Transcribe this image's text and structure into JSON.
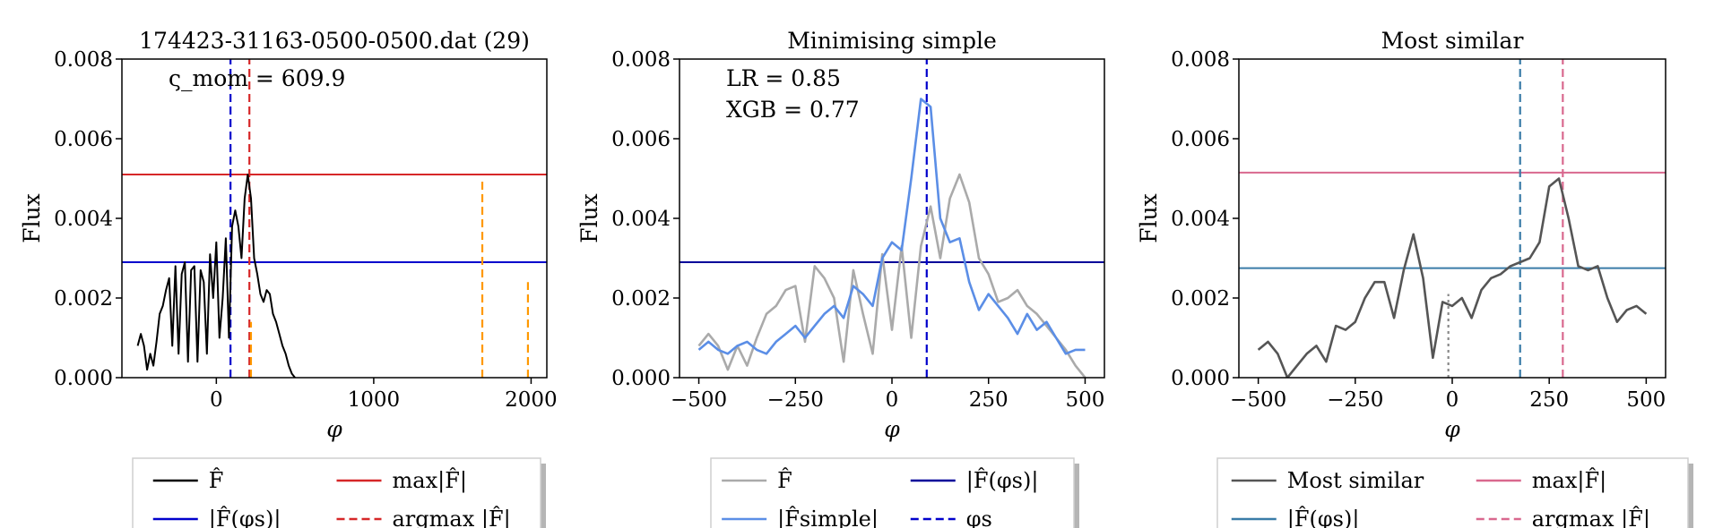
{
  "chart_data": [
    {
      "type": "line",
      "title": "174423-31163-0500-0500.dat (29)",
      "xlabel": "φ",
      "ylabel": "Flux",
      "xlim": [
        -600,
        2100
      ],
      "ylim": [
        0,
        0.008
      ],
      "xticks": [
        0,
        1000,
        2000
      ],
      "xtick_labels": [
        "0",
        "1000",
        "2000"
      ],
      "yticks": [
        0,
        0.002,
        0.004,
        0.006,
        0.008
      ],
      "ytick_labels": [
        "0.000",
        "0.002",
        "0.004",
        "0.006",
        "0.008"
      ],
      "annotation": "ς_mom = 609.9",
      "series": [
        {
          "name": "F̂",
          "color": "#000000",
          "style": "solid",
          "x": [
            -500,
            -480,
            -460,
            -440,
            -420,
            -400,
            -380,
            -360,
            -340,
            -320,
            -300,
            -280,
            -260,
            -240,
            -220,
            -200,
            -180,
            -160,
            -140,
            -120,
            -100,
            -80,
            -60,
            -40,
            -20,
            0,
            20,
            40,
            60,
            80,
            100,
            120,
            140,
            160,
            180,
            200,
            220,
            240,
            260,
            280,
            300,
            320,
            340,
            360,
            380,
            400,
            420,
            440,
            460,
            480,
            500
          ],
          "y": [
            0.0008,
            0.0011,
            0.0008,
            0.0002,
            0.0006,
            0.0003,
            0.0009,
            0.0016,
            0.0018,
            0.0022,
            0.0025,
            0.0008,
            0.0028,
            0.0006,
            0.0026,
            0.0029,
            0.0004,
            0.0027,
            0.0028,
            0.0004,
            0.0027,
            0.0024,
            0.0006,
            0.0031,
            0.002,
            0.0034,
            0.001,
            0.002,
            0.0035,
            0.001,
            0.0038,
            0.0042,
            0.0038,
            0.003,
            0.0045,
            0.0051,
            0.0045,
            0.003,
            0.0026,
            0.0021,
            0.0019,
            0.0022,
            0.0021,
            0.0016,
            0.0014,
            0.0011,
            0.0008,
            0.0006,
            0.0003,
            0.0001,
            0.0
          ]
        }
      ],
      "hlines": [
        {
          "name": "max|F̂|",
          "y": 0.0051,
          "color": "#d62728",
          "style": "solid"
        },
        {
          "name": "|F̂(φs)|",
          "y": 0.0029,
          "color": "#0000cc",
          "style": "solid"
        }
      ],
      "vlines": [
        {
          "x": 90,
          "ymin": 0,
          "ymax": 0.008,
          "color": "#0000cc",
          "style": "dashed"
        },
        {
          "name": "argmax |F̂|",
          "x": 210,
          "ymin": 0,
          "ymax": 0.008,
          "color": "#d62728",
          "style": "dashed"
        },
        {
          "x": 220,
          "ymin": 0,
          "ymax": 0.0014,
          "color": "#ff9900",
          "style": "dashed"
        },
        {
          "x": 1690,
          "ymin": 0,
          "ymax": 0.005,
          "color": "#ff9900",
          "style": "dashed"
        },
        {
          "x": 1980,
          "ymin": 0,
          "ymax": 0.0024,
          "color": "#ff9900",
          "style": "dashed"
        }
      ],
      "legend": {
        "placement": "below",
        "entries": [
          {
            "label": "F̂",
            "color": "#000000",
            "style": "solid"
          },
          {
            "label": "max|F̂|",
            "color": "#d62728",
            "style": "solid"
          },
          {
            "label": "|F̂(φs)|",
            "color": "#0000cc",
            "style": "solid"
          },
          {
            "label": "argmax |F̂|",
            "color": "#d62728",
            "style": "dashed"
          }
        ]
      }
    },
    {
      "type": "line",
      "title": "Minimising simple",
      "xlabel": "φ",
      "ylabel": "Flux",
      "xlim": [
        -550,
        550
      ],
      "ylim": [
        0,
        0.008
      ],
      "xticks": [
        -500,
        -250,
        0,
        250,
        500
      ],
      "xtick_labels": [
        "−500",
        "−250",
        "0",
        "250",
        "500"
      ],
      "yticks": [
        0,
        0.002,
        0.004,
        0.006,
        0.008
      ],
      "ytick_labels": [
        "0.000",
        "0.002",
        "0.004",
        "0.006",
        "0.008"
      ],
      "annotations": [
        "LR = 0.85",
        "XGB = 0.77"
      ],
      "series": [
        {
          "name": "F̂",
          "color": "#aaaaaa",
          "style": "solid",
          "x": [
            -500,
            -475,
            -450,
            -425,
            -400,
            -375,
            -350,
            -325,
            -300,
            -275,
            -250,
            -225,
            -200,
            -175,
            -150,
            -125,
            -100,
            -75,
            -50,
            -25,
            0,
            25,
            50,
            75,
            100,
            125,
            150,
            175,
            200,
            225,
            250,
            275,
            300,
            325,
            350,
            375,
            400,
            425,
            450,
            475,
            500
          ],
          "y": [
            0.0008,
            0.0011,
            0.0008,
            0.0002,
            0.0008,
            0.0003,
            0.001,
            0.0016,
            0.0018,
            0.0022,
            0.0023,
            0.0009,
            0.0028,
            0.0025,
            0.002,
            0.0004,
            0.0027,
            0.0016,
            0.0006,
            0.0031,
            0.0012,
            0.0033,
            0.001,
            0.0033,
            0.0043,
            0.003,
            0.0045,
            0.0051,
            0.0044,
            0.003,
            0.0026,
            0.0019,
            0.002,
            0.0022,
            0.0018,
            0.0016,
            0.0013,
            0.001,
            0.0007,
            0.0003,
            0.0
          ]
        },
        {
          "name": "|F̂simple|",
          "color": "#5b8ee6",
          "style": "solid",
          "x": [
            -500,
            -475,
            -450,
            -425,
            -400,
            -375,
            -350,
            -325,
            -300,
            -275,
            -250,
            -225,
            -200,
            -175,
            -150,
            -125,
            -100,
            -75,
            -50,
            -25,
            0,
            25,
            50,
            75,
            100,
            125,
            150,
            175,
            200,
            225,
            250,
            275,
            300,
            325,
            350,
            375,
            400,
            425,
            450,
            475,
            500
          ],
          "y": [
            0.0007,
            0.0009,
            0.0007,
            0.0006,
            0.0008,
            0.0009,
            0.0007,
            0.0006,
            0.0009,
            0.0011,
            0.0013,
            0.001,
            0.0013,
            0.0016,
            0.0018,
            0.0015,
            0.0023,
            0.0021,
            0.0018,
            0.003,
            0.0034,
            0.0032,
            0.005,
            0.007,
            0.0068,
            0.004,
            0.0034,
            0.0035,
            0.0024,
            0.0017,
            0.0021,
            0.0018,
            0.0015,
            0.0011,
            0.0016,
            0.0012,
            0.0014,
            0.001,
            0.0006,
            0.0007,
            0.0007
          ]
        }
      ],
      "hlines": [
        {
          "name": "|F̂(φs)|",
          "y": 0.0029,
          "color": "#000099",
          "style": "solid"
        }
      ],
      "vlines": [
        {
          "name": "φs",
          "x": 90,
          "ymin": 0,
          "ymax": 0.008,
          "color": "#0000cc",
          "style": "dashed"
        }
      ],
      "legend": {
        "placement": "below",
        "entries": [
          {
            "label": "F̂",
            "color": "#aaaaaa",
            "style": "solid"
          },
          {
            "label": "|F̂(φs)|",
            "color": "#000099",
            "style": "solid"
          },
          {
            "label": "|F̂simple|",
            "color": "#5b8ee6",
            "style": "solid"
          },
          {
            "label": "φs",
            "color": "#0000cc",
            "style": "dashed"
          }
        ]
      }
    },
    {
      "type": "line",
      "title": "Most similar",
      "xlabel": "φ",
      "ylabel": "Flux",
      "xlim": [
        -550,
        550
      ],
      "ylim": [
        0,
        0.008
      ],
      "xticks": [
        -500,
        -250,
        0,
        250,
        500
      ],
      "xtick_labels": [
        "−500",
        "−250",
        "0",
        "250",
        "500"
      ],
      "yticks": [
        0,
        0.002,
        0.004,
        0.006,
        0.008
      ],
      "ytick_labels": [
        "0.000",
        "0.002",
        "0.004",
        "0.006",
        "0.008"
      ],
      "series": [
        {
          "name": "Most similar",
          "color": "#555555",
          "style": "solid",
          "x": [
            -500,
            -475,
            -450,
            -425,
            -400,
            -375,
            -350,
            -325,
            -300,
            -275,
            -250,
            -225,
            -200,
            -175,
            -150,
            -125,
            -100,
            -75,
            -50,
            -25,
            0,
            25,
            50,
            75,
            100,
            125,
            150,
            175,
            200,
            225,
            250,
            275,
            300,
            325,
            350,
            375,
            400,
            425,
            450,
            475,
            500
          ],
          "y": [
            0.0007,
            0.0009,
            0.0006,
            0.0,
            0.0003,
            0.0006,
            0.0008,
            0.0004,
            0.0013,
            0.0012,
            0.0014,
            0.002,
            0.0024,
            0.0024,
            0.0015,
            0.0027,
            0.0036,
            0.0025,
            0.0005,
            0.0019,
            0.0018,
            0.002,
            0.0015,
            0.0022,
            0.0025,
            0.0026,
            0.0028,
            0.0029,
            0.003,
            0.0034,
            0.0048,
            0.005,
            0.004,
            0.0028,
            0.0027,
            0.0028,
            0.002,
            0.0014,
            0.0017,
            0.0018,
            0.0016
          ]
        }
      ],
      "hlines": [
        {
          "name": "max|F̂|",
          "y": 0.00515,
          "color": "#d9688e",
          "style": "solid"
        },
        {
          "name": "|F̂(φs)|",
          "y": 0.00275,
          "color": "#3a7ca8",
          "style": "solid"
        }
      ],
      "vlines": [
        {
          "x": 175,
          "ymin": 0,
          "ymax": 0.008,
          "color": "#3a7ca8",
          "style": "dashed"
        },
        {
          "name": "argmax |F̂|",
          "x": 285,
          "ymin": 0,
          "ymax": 0.008,
          "color": "#d9688e",
          "style": "dashed"
        },
        {
          "x": -10,
          "ymin": 0,
          "ymax": 0.0021,
          "color": "#888888",
          "style": "dotted"
        }
      ],
      "legend": {
        "placement": "below",
        "entries": [
          {
            "label": "Most similar",
            "color": "#555555",
            "style": "solid"
          },
          {
            "label": "max|F̂|",
            "color": "#d9688e",
            "style": "solid"
          },
          {
            "label": "|F̂(φs)|",
            "color": "#3a7ca8",
            "style": "solid"
          },
          {
            "label": "argmax |F̂|",
            "color": "#d9688e",
            "style": "dashed"
          }
        ]
      }
    }
  ]
}
